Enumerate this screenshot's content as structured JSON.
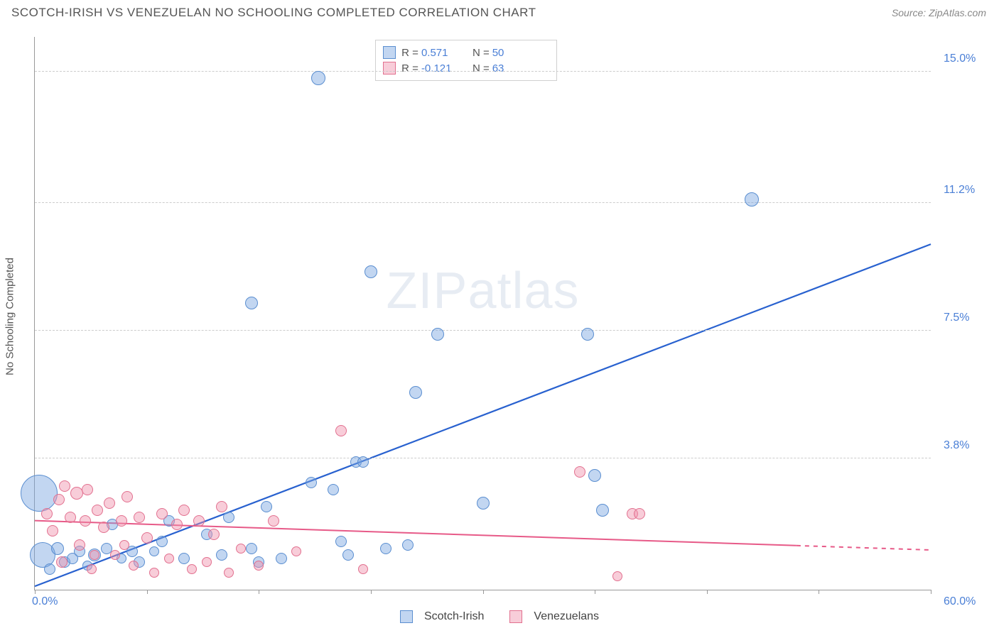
{
  "title": "SCOTCH-IRISH VS VENEZUELAN NO SCHOOLING COMPLETED CORRELATION CHART",
  "source_label": "Source:",
  "source_name": "ZipAtlas.com",
  "y_axis_title": "No Schooling Completed",
  "watermark_prefix": "ZIP",
  "watermark_suffix": "atlas",
  "chart": {
    "type": "scatter",
    "xlim": [
      0,
      60
    ],
    "ylim": [
      0,
      16
    ],
    "x_origin_label": "0.0%",
    "x_max_label": "60.0%",
    "x_tick_positions": [
      0,
      7.5,
      15,
      22.5,
      30,
      37.5,
      45,
      52.5,
      60
    ],
    "y_ticks": [
      {
        "value": 3.8,
        "label": "3.8%"
      },
      {
        "value": 7.5,
        "label": "7.5%"
      },
      {
        "value": 11.2,
        "label": "11.2%"
      },
      {
        "value": 15.0,
        "label": "15.0%"
      }
    ],
    "background_color": "#ffffff",
    "grid_color": "#cccccc",
    "axis_color": "#999999",
    "label_color_blue": "#4a7fd6",
    "series": [
      {
        "key": "scotch_irish",
        "label": "Scotch-Irish",
        "fill": "rgba(120,165,225,0.45)",
        "stroke": "#5a8ed0",
        "line_color": "#2861cf",
        "line_width": 2.2,
        "r_value": "0.571",
        "n_value": "50",
        "trend": {
          "x1": 0,
          "y1": 0.1,
          "x2": 60,
          "y2": 10.0
        },
        "points": [
          {
            "x": 0.5,
            "y": 1.0,
            "r": 18
          },
          {
            "x": 0.3,
            "y": 2.8,
            "r": 26
          },
          {
            "x": 1.0,
            "y": 0.6,
            "r": 8
          },
          {
            "x": 1.5,
            "y": 1.2,
            "r": 9
          },
          {
            "x": 2.0,
            "y": 0.8,
            "r": 8
          },
          {
            "x": 2.5,
            "y": 0.9,
            "r": 8
          },
          {
            "x": 3.0,
            "y": 1.1,
            "r": 8
          },
          {
            "x": 3.5,
            "y": 0.7,
            "r": 7
          },
          {
            "x": 4.0,
            "y": 1.0,
            "r": 9
          },
          {
            "x": 4.8,
            "y": 1.2,
            "r": 8
          },
          {
            "x": 5.2,
            "y": 1.9,
            "r": 8
          },
          {
            "x": 5.8,
            "y": 0.9,
            "r": 7
          },
          {
            "x": 6.5,
            "y": 1.1,
            "r": 8
          },
          {
            "x": 7.0,
            "y": 0.8,
            "r": 8
          },
          {
            "x": 8.5,
            "y": 1.4,
            "r": 8
          },
          {
            "x": 9.0,
            "y": 2.0,
            "r": 8
          },
          {
            "x": 10.0,
            "y": 0.9,
            "r": 8
          },
          {
            "x": 11.5,
            "y": 1.6,
            "r": 8
          },
          {
            "x": 12.5,
            "y": 1.0,
            "r": 8
          },
          {
            "x": 13.0,
            "y": 2.1,
            "r": 8
          },
          {
            "x": 14.5,
            "y": 1.2,
            "r": 8
          },
          {
            "x": 15.0,
            "y": 0.8,
            "r": 8
          },
          {
            "x": 15.5,
            "y": 2.4,
            "r": 8
          },
          {
            "x": 16.5,
            "y": 0.9,
            "r": 8
          },
          {
            "x": 18.5,
            "y": 3.1,
            "r": 8
          },
          {
            "x": 19.0,
            "y": 14.8,
            "r": 10
          },
          {
            "x": 20.0,
            "y": 2.9,
            "r": 8
          },
          {
            "x": 21.0,
            "y": 1.0,
            "r": 8
          },
          {
            "x": 21.5,
            "y": 3.7,
            "r": 8
          },
          {
            "x": 22.0,
            "y": 3.7,
            "r": 8
          },
          {
            "x": 22.5,
            "y": 9.2,
            "r": 9
          },
          {
            "x": 23.5,
            "y": 1.2,
            "r": 8
          },
          {
            "x": 25.0,
            "y": 1.3,
            "r": 8
          },
          {
            "x": 25.5,
            "y": 5.7,
            "r": 9
          },
          {
            "x": 27.0,
            "y": 7.4,
            "r": 9
          },
          {
            "x": 30.0,
            "y": 2.5,
            "r": 9
          },
          {
            "x": 37.0,
            "y": 7.4,
            "r": 9
          },
          {
            "x": 37.5,
            "y": 3.3,
            "r": 9
          },
          {
            "x": 38.0,
            "y": 2.3,
            "r": 9
          },
          {
            "x": 48.0,
            "y": 11.3,
            "r": 10
          },
          {
            "x": 14.5,
            "y": 8.3,
            "r": 9
          },
          {
            "x": 20.5,
            "y": 1.4,
            "r": 8
          },
          {
            "x": 8.0,
            "y": 1.1,
            "r": 7
          }
        ]
      },
      {
        "key": "venezuelans",
        "label": "Venezuelans",
        "fill": "rgba(240,145,170,0.45)",
        "stroke": "#e2708f",
        "line_color": "#e75a88",
        "line_width": 2.0,
        "line_dash_tail": true,
        "r_value": "-0.121",
        "n_value": "63",
        "trend": {
          "x1": 0,
          "y1": 2.0,
          "x2": 60,
          "y2": 1.15
        },
        "points": [
          {
            "x": 0.8,
            "y": 2.2,
            "r": 8
          },
          {
            "x": 1.2,
            "y": 1.7,
            "r": 8
          },
          {
            "x": 1.6,
            "y": 2.6,
            "r": 8
          },
          {
            "x": 1.8,
            "y": 0.8,
            "r": 8
          },
          {
            "x": 2.4,
            "y": 2.1,
            "r": 8
          },
          {
            "x": 2.8,
            "y": 2.8,
            "r": 9
          },
          {
            "x": 3.0,
            "y": 1.3,
            "r": 8
          },
          {
            "x": 3.4,
            "y": 2.0,
            "r": 8
          },
          {
            "x": 3.8,
            "y": 0.6,
            "r": 7
          },
          {
            "x": 4.2,
            "y": 2.3,
            "r": 8
          },
          {
            "x": 4.6,
            "y": 1.8,
            "r": 8
          },
          {
            "x": 5.0,
            "y": 2.5,
            "r": 8
          },
          {
            "x": 5.4,
            "y": 1.0,
            "r": 7
          },
          {
            "x": 5.8,
            "y": 2.0,
            "r": 8
          },
          {
            "x": 6.2,
            "y": 2.7,
            "r": 8
          },
          {
            "x": 6.6,
            "y": 0.7,
            "r": 7
          },
          {
            "x": 7.0,
            "y": 2.1,
            "r": 8
          },
          {
            "x": 7.5,
            "y": 1.5,
            "r": 8
          },
          {
            "x": 8.0,
            "y": 0.5,
            "r": 7
          },
          {
            "x": 8.5,
            "y": 2.2,
            "r": 8
          },
          {
            "x": 9.0,
            "y": 0.9,
            "r": 7
          },
          {
            "x": 9.5,
            "y": 1.9,
            "r": 8
          },
          {
            "x": 10.0,
            "y": 2.3,
            "r": 8
          },
          {
            "x": 10.5,
            "y": 0.6,
            "r": 7
          },
          {
            "x": 11.0,
            "y": 2.0,
            "r": 8
          },
          {
            "x": 11.5,
            "y": 0.8,
            "r": 7
          },
          {
            "x": 12.0,
            "y": 1.6,
            "r": 8
          },
          {
            "x": 12.5,
            "y": 2.4,
            "r": 8
          },
          {
            "x": 13.0,
            "y": 0.5,
            "r": 7
          },
          {
            "x": 13.8,
            "y": 1.2,
            "r": 7
          },
          {
            "x": 15.0,
            "y": 0.7,
            "r": 7
          },
          {
            "x": 16.0,
            "y": 2.0,
            "r": 8
          },
          {
            "x": 17.5,
            "y": 1.1,
            "r": 7
          },
          {
            "x": 20.5,
            "y": 4.6,
            "r": 8
          },
          {
            "x": 22.0,
            "y": 0.6,
            "r": 7
          },
          {
            "x": 36.5,
            "y": 3.4,
            "r": 8
          },
          {
            "x": 39.0,
            "y": 0.4,
            "r": 7
          },
          {
            "x": 40.0,
            "y": 2.2,
            "r": 8
          },
          {
            "x": 40.5,
            "y": 2.2,
            "r": 8
          },
          {
            "x": 2.0,
            "y": 3.0,
            "r": 8
          },
          {
            "x": 3.5,
            "y": 2.9,
            "r": 8
          },
          {
            "x": 6.0,
            "y": 1.3,
            "r": 7
          },
          {
            "x": 4.0,
            "y": 1.0,
            "r": 7
          }
        ]
      }
    ]
  },
  "legend_top": {
    "r_label": "R  =",
    "n_label": "N  ="
  },
  "legend_bottom": [
    {
      "label": "Scotch-Irish",
      "fill": "rgba(120,165,225,0.45)",
      "stroke": "#5a8ed0"
    },
    {
      "label": "Venezuelans",
      "fill": "rgba(240,145,170,0.45)",
      "stroke": "#e2708f"
    }
  ]
}
